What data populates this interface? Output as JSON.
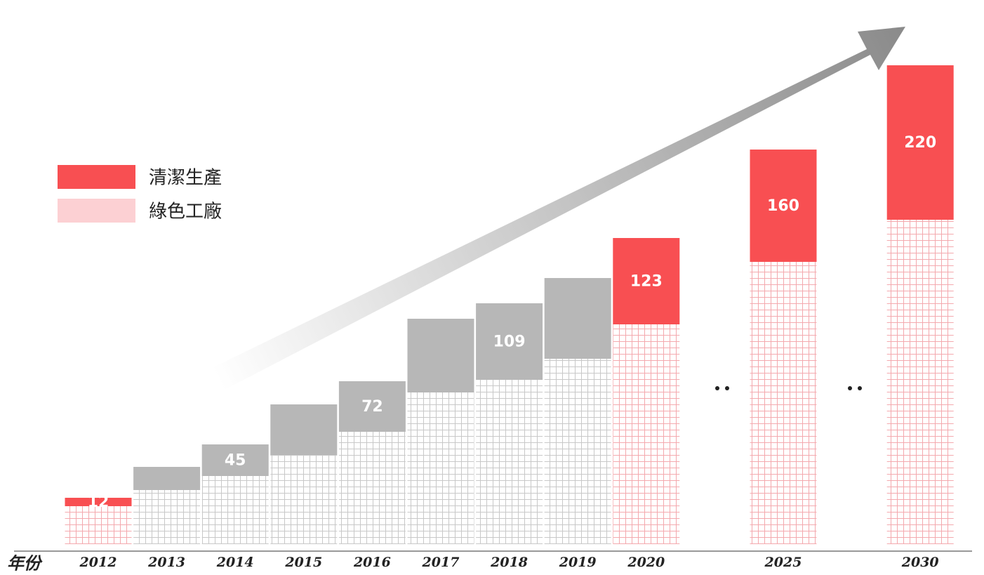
{
  "chart_data": {
    "type": "stacked_bar",
    "x_label": "年份",
    "categories": [
      "2012",
      "2013",
      "2014",
      "2015",
      "2016",
      "2017",
      "2018",
      "2019",
      "2020",
      null,
      "2025",
      null,
      "2030"
    ],
    "series": [
      {
        "name": "綠色工廠",
        "color": "#fcd0d3",
        "colors": [
          "#f4a9ae",
          "#c8c8c8",
          "#c8c8c8",
          "#c8c8c8",
          "#c8c8c8",
          "#c8c8c8",
          "#c8c8c8",
          "#c8c8c8",
          "#f4a9ae",
          null,
          "#f4a9ae",
          null,
          "#f4a9ae"
        ],
        "values": [
          54,
          77,
          97,
          127,
          160,
          216,
          234,
          264,
          313,
          null,
          402,
          null,
          462
        ]
      },
      {
        "name": "清潔生產",
        "color": "#f84f52",
        "colors": [
          "#f84f52",
          "#b7b7b7",
          "#b7b7b7",
          "#b7b7b7",
          "#b7b7b7",
          "#b7b7b7",
          "#b7b7b7",
          "#b7b7b7",
          "#f84f52",
          null,
          "#f84f52",
          null,
          "#f84f52"
        ],
        "values": [
          12,
          33,
          45,
          72,
          72,
          105,
          109,
          115,
          123,
          null,
          160,
          null,
          220
        ],
        "value_labels": [
          "12",
          null,
          "45",
          null,
          "72",
          null,
          "109",
          null,
          "123",
          null,
          "160",
          null,
          "220"
        ]
      }
    ],
    "ylim": [
      0,
      700
    ]
  }
}
